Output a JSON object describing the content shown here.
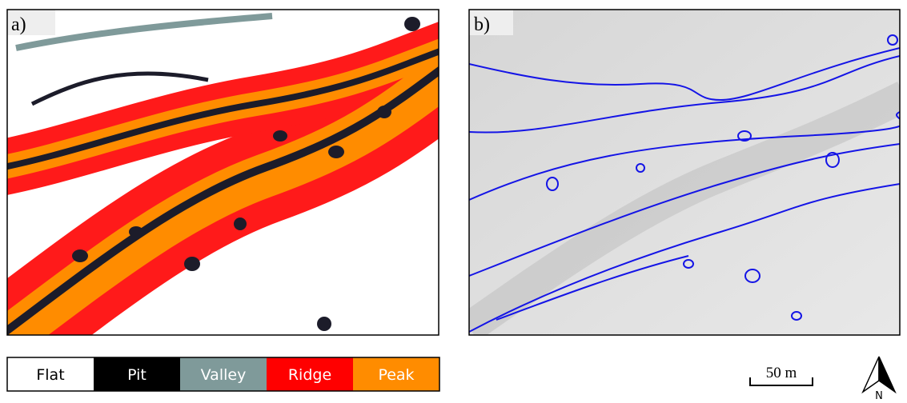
{
  "panels": [
    {
      "label": "a)"
    },
    {
      "label": "b)"
    }
  ],
  "legend": [
    {
      "label": "Flat",
      "color": "#ffffff",
      "text_color": "#000000"
    },
    {
      "label": "Pit",
      "color": "#000000",
      "text_color": "#ffffff"
    },
    {
      "label": "Valley",
      "color": "#7f9a9a",
      "text_color": "#ffffff"
    },
    {
      "label": "Ridge",
      "color": "#ff0000",
      "text_color": "#ffffff"
    },
    {
      "label": "Peak",
      "color": "#ff8c00",
      "text_color": "#ffffff"
    }
  ],
  "scale_bar": {
    "label": "50 m"
  },
  "north_arrow": {
    "label": "N"
  }
}
